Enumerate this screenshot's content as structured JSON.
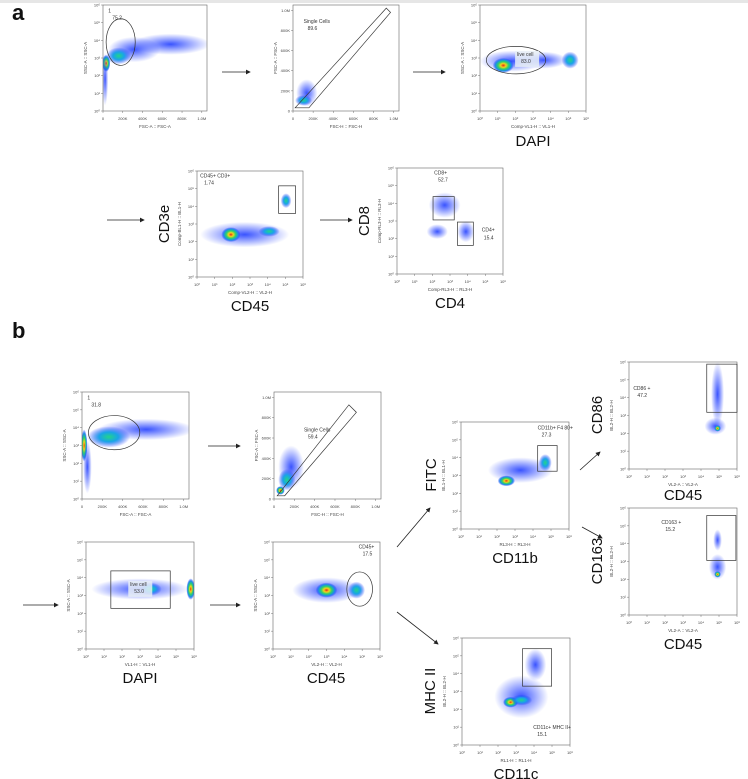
{
  "panels": {
    "a": "a",
    "b": "b"
  },
  "plots": [
    {
      "id": "a1",
      "xlabel": "FSC-A :: FSC-A",
      "ylabel": "SSC-A :: SSC-A",
      "xscale": "lin",
      "yscale": "log",
      "gate_name": "1",
      "gate_value": "75.2",
      "gate_type": "ellipse",
      "marker_x": "",
      "marker_y": ""
    },
    {
      "id": "a2",
      "xlabel": "FSC-H :: FSC-H",
      "ylabel": "FSC-A :: FSC-A",
      "xscale": "lin",
      "yscale": "lin",
      "gate_name": "Single Cells",
      "gate_value": "89.6",
      "gate_type": "polygon",
      "marker_x": "",
      "marker_y": ""
    },
    {
      "id": "a3",
      "xlabel": "Comp-VL1-H :: VL1-H",
      "ylabel": "SSC-A :: SSC-A",
      "xscale": "log",
      "yscale": "log",
      "gate_name": "live cell",
      "gate_value": "83.0",
      "gate_type": "ellipse",
      "marker_x": "DAPI",
      "marker_y": ""
    },
    {
      "id": "a4",
      "xlabel": "Comp-VL2-H :: VL2-H",
      "ylabel": "Comp-BL1-H :: BL1-H",
      "xscale": "log",
      "yscale": "log",
      "gate_name": "CD45+ CD3+",
      "gate_value": "1.74",
      "gate_type": "rect",
      "marker_x": "CD45",
      "marker_y": "CD3e"
    },
    {
      "id": "a5",
      "xlabel": "Comp-RL3-H :: RL3-H",
      "ylabel": "Comp-RL3-H :: RL3-H",
      "xscale": "log",
      "yscale": "log",
      "gate_name": "CD8+",
      "gate_value": "52.7",
      "gate2_name": "CD4+",
      "gate2_value": "15.4",
      "gate_type": "rect2",
      "marker_x": "CD4",
      "marker_y": "CD8"
    },
    {
      "id": "b1",
      "xlabel": "FSC-A :: FSC-A",
      "ylabel": "SSC-A :: SSC-A",
      "xscale": "lin",
      "yscale": "log",
      "gate_name": "1",
      "gate_value": "31.8",
      "gate_type": "ellipse",
      "marker_x": "",
      "marker_y": ""
    },
    {
      "id": "b2",
      "xlabel": "FSC-H :: FSC-H",
      "ylabel": "FSC-A :: FSC-A",
      "xscale": "lin",
      "yscale": "lin",
      "gate_name": "Single Cells",
      "gate_value": "59.4",
      "gate_type": "polygon",
      "marker_x": "",
      "marker_y": ""
    },
    {
      "id": "b3",
      "xlabel": "VL1-H :: VL1-H",
      "ylabel": "SSC-A :: SSC-A",
      "xscale": "log",
      "yscale": "log",
      "gate_name": "live cell",
      "gate_value": "53.0",
      "gate_type": "rect",
      "marker_x": "DAPI",
      "marker_y": ""
    },
    {
      "id": "b4",
      "xlabel": "VL2-H :: VL2-H",
      "ylabel": "SSC-A :: SSC-A",
      "xscale": "log",
      "yscale": "log",
      "gate_name": "CD45+",
      "gate_value": "17.5",
      "gate_type": "ellipse",
      "marker_x": "CD45",
      "marker_y": ""
    },
    {
      "id": "b5",
      "xlabel": "RL3-H :: RL3-H",
      "ylabel": "BL1-H :: BL1-H",
      "xscale": "log",
      "yscale": "log",
      "gate_name": "CD11b+ F4 80+",
      "gate_value": "27.3",
      "gate_type": "rect",
      "marker_x": "CD11b",
      "marker_y": "FITC"
    },
    {
      "id": "b6",
      "xlabel": "VL2-A :: VL2-A",
      "ylabel": "BL2-H :: BL2-H",
      "xscale": "log",
      "yscale": "log",
      "gate_name": "CD86 +",
      "gate_value": "47.2",
      "gate_type": "rect",
      "marker_x": "CD45",
      "marker_y": "CD86"
    },
    {
      "id": "b7",
      "xlabel": "VL2-A :: VL2-A",
      "ylabel": "BL2-H :: BL2-H",
      "xscale": "log",
      "yscale": "log",
      "gate_name": "CD163 +",
      "gate_value": "15.2",
      "gate_type": "rect",
      "marker_x": "CD45",
      "marker_y": "CD163"
    },
    {
      "id": "b8",
      "xlabel": "RL1-H :: RL1-H",
      "ylabel": "BL2-H :: BL2-H",
      "xscale": "log",
      "yscale": "log",
      "gate_name": "CD11c+ MHC II+",
      "gate_value": "15.1",
      "gate_type": "rect",
      "marker_x": "CD11c",
      "marker_y": "MHC II"
    }
  ],
  "ticks": {
    "lin": [
      "0",
      "200K",
      "400K",
      "600K",
      "800K",
      "1.0M"
    ],
    "log": [
      "10⁰",
      "10¹",
      "10²",
      "10³",
      "10⁴",
      "10⁵",
      "10⁶"
    ]
  }
}
